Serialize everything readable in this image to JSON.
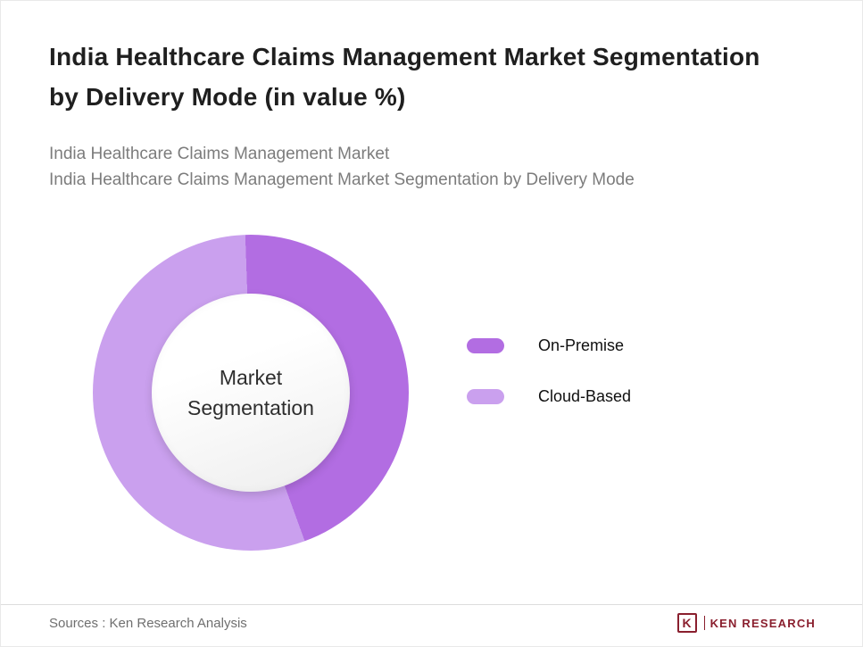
{
  "header": {
    "title_line1": "India Healthcare Claims Management Market Segmentation",
    "title_line2": "by Delivery Mode (in value %)",
    "subtitle_line1": "India Healthcare Claims Management Market",
    "subtitle_line2": "India Healthcare Claims Management Market Segmentation by Delivery Mode"
  },
  "chart_data": {
    "type": "pie",
    "variant": "donut",
    "title": "India Healthcare Claims Management Market Segmentation by Delivery Mode (in value %)",
    "categories": [
      "On-Premise",
      "Cloud-Based"
    ],
    "values": [
      45,
      55
    ],
    "colors": [
      "#b26de2",
      "#caa0ee"
    ],
    "center_label": "Market Segmentation",
    "legend_position": "right",
    "start_angle_deg": -2,
    "data_labels_shown": false
  },
  "footer": {
    "source": "Sources : Ken Research Analysis",
    "logo_letter": "K",
    "logo_text": "KEN RESEARCH"
  }
}
